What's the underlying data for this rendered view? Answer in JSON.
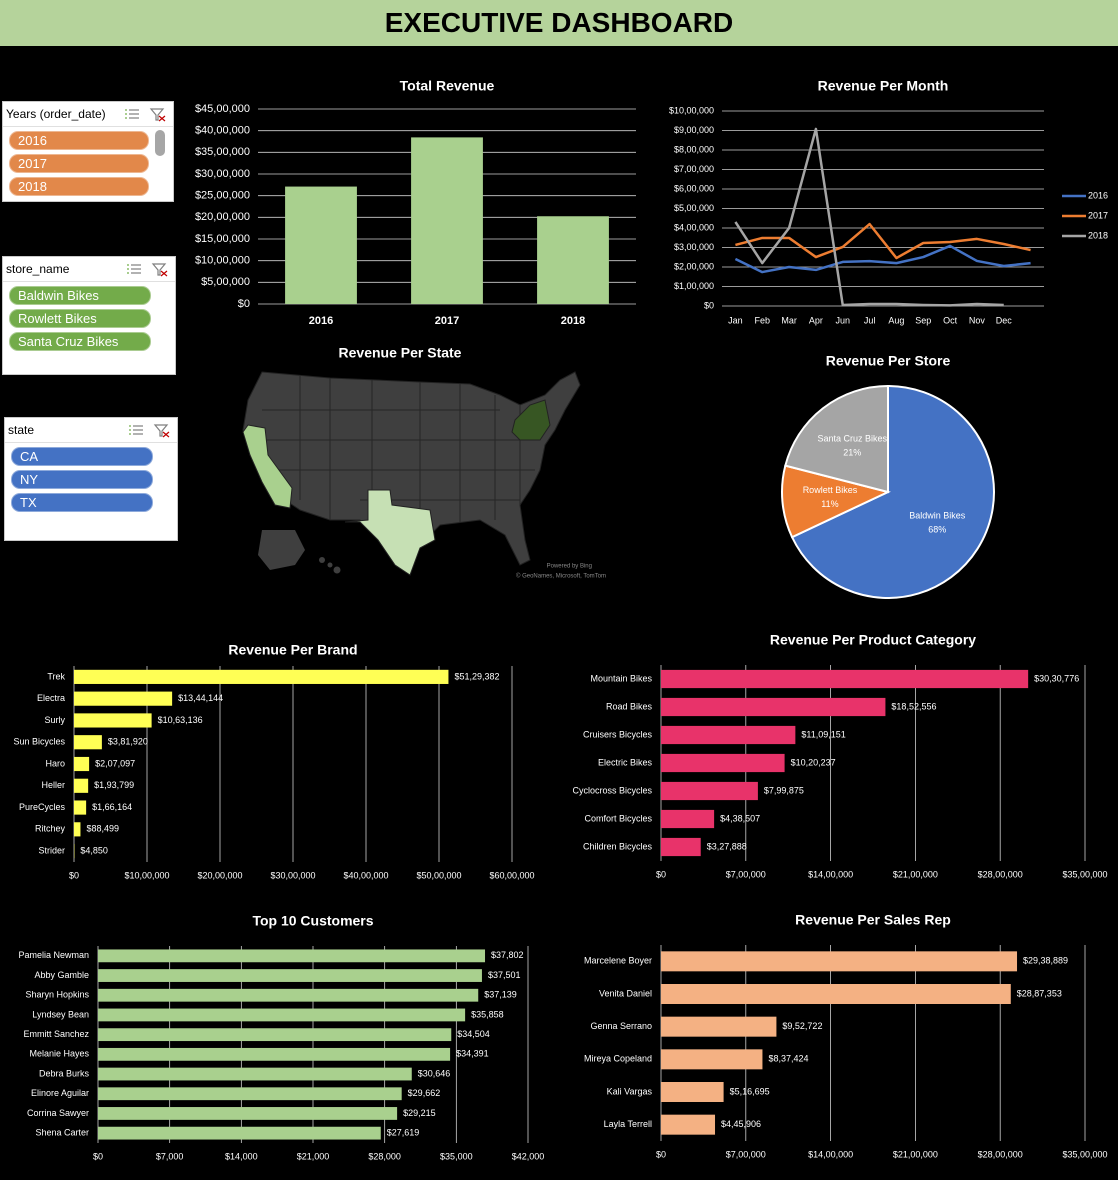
{
  "title": "EXECUTIVE DASHBOARD",
  "slicers": [
    {
      "title": "Years (order_date)",
      "items": [
        "2016",
        "2017",
        "2018"
      ]
    },
    {
      "title": "store_name",
      "items": [
        "Baldwin Bikes",
        "Rowlett Bikes",
        "Santa Cruz Bikes"
      ]
    },
    {
      "title": "state",
      "items": [
        "CA",
        "NY",
        "TX"
      ]
    }
  ],
  "map": {
    "title": "Revenue Per State",
    "credits": [
      "Powered by Bing",
      "© GeoNames, Microsoft, TomTom"
    ]
  },
  "chart_data": [
    {
      "type": "bar",
      "title": "Total Revenue",
      "categories": [
        "2016",
        "2017",
        "2018"
      ],
      "values": [
        2710000,
        3845000,
        2025000
      ],
      "color": "#a9d08e",
      "ylim": [
        0,
        4500000
      ],
      "yticks": [
        {
          "value": 0,
          "label": "$0"
        },
        {
          "value": 500000,
          "label": "$5,00,000"
        },
        {
          "value": 1000000,
          "label": "$10,00,000"
        },
        {
          "value": 1500000,
          "label": "$15,00,000"
        },
        {
          "value": 2000000,
          "label": "$20,00,000"
        },
        {
          "value": 2500000,
          "label": "$25,00,000"
        },
        {
          "value": 3000000,
          "label": "$30,00,000"
        },
        {
          "value": 3500000,
          "label": "$35,00,000"
        },
        {
          "value": 4000000,
          "label": "$40,00,000"
        },
        {
          "value": 4500000,
          "label": "$45,00,000"
        }
      ],
      "grid": true
    },
    {
      "type": "line",
      "title": "Revenue Per Month",
      "categories": [
        "Jan",
        "Feb",
        "Mar",
        "Apr",
        "Jun",
        "Jul",
        "Aug",
        "Sep",
        "Oct",
        "Nov",
        "Dec",
        null
      ],
      "series": [
        {
          "name": "2016",
          "color": "#4472c4",
          "values": [
            241000,
            174000,
            200000,
            185000,
            226000,
            230000,
            220000,
            251000,
            308000,
            231000,
            205000,
            220000
          ]
        },
        {
          "name": "2017",
          "color": "#ed7d31",
          "values": [
            313000,
            349000,
            349000,
            251000,
            303000,
            420000,
            246000,
            323000,
            328000,
            344000,
            318000,
            287000
          ]
        },
        {
          "name": "2018",
          "color": "#a5a5a5",
          "values": [
            431000,
            220000,
            400000,
            908000,
            5000,
            10000,
            10000,
            5000,
            3000,
            10000,
            5000,
            null
          ]
        }
      ],
      "ylim": [
        0,
        1000000
      ],
      "yticks": [
        {
          "value": 0,
          "label": "$0"
        },
        {
          "value": 100000,
          "label": "$1,00,000"
        },
        {
          "value": 200000,
          "label": "$2,00,000"
        },
        {
          "value": 300000,
          "label": "$3,00,000"
        },
        {
          "value": 400000,
          "label": "$4,00,000"
        },
        {
          "value": 500000,
          "label": "$5,00,000"
        },
        {
          "value": 600000,
          "label": "$6,00,000"
        },
        {
          "value": 700000,
          "label": "$7,00,000"
        },
        {
          "value": 800000,
          "label": "$8,00,000"
        },
        {
          "value": 900000,
          "label": "$9,00,000"
        },
        {
          "value": 1000000,
          "label": "$10,00,000"
        }
      ],
      "grid": true,
      "legend": "right"
    },
    {
      "type": "pie",
      "title": "Revenue Per Store",
      "categories": [
        "Baldwin Bikes",
        "Rowlett Bikes",
        "Santa Cruz Bikes"
      ],
      "values": [
        68,
        11,
        21
      ],
      "value_labels": [
        "68%",
        "11%",
        "21%"
      ],
      "colors": [
        "#4472c4",
        "#ed7d31",
        "#a5a5a5"
      ]
    },
    {
      "type": "barh",
      "title": "Revenue Per Brand",
      "categories": [
        "Trek",
        "Electra",
        "Surly",
        "Sun Bicycles",
        "Haro",
        "Heller",
        "PureCycles",
        "Ritchey",
        "Strider"
      ],
      "values": [
        5129382,
        1344144,
        1063136,
        381920,
        207097,
        193799,
        166164,
        88499,
        4850
      ],
      "value_labels": [
        "$51,29,382",
        "$13,44,144",
        "$10,63,136",
        "$3,81,920",
        "$2,07,097",
        "$1,93,799",
        "$1,66,164",
        "$88,499",
        "$4,850"
      ],
      "color": "#ffff55",
      "xlim": [
        0,
        6000000
      ],
      "xticks": [
        {
          "value": 0,
          "label": "$0"
        },
        {
          "value": 1000000,
          "label": "$10,00,000"
        },
        {
          "value": 2000000,
          "label": "$20,00,000"
        },
        {
          "value": 3000000,
          "label": "$30,00,000"
        },
        {
          "value": 4000000,
          "label": "$40,00,000"
        },
        {
          "value": 5000000,
          "label": "$50,00,000"
        },
        {
          "value": 6000000,
          "label": "$60,00,000"
        }
      ],
      "grid": true
    },
    {
      "type": "barh",
      "title": "Revenue Per Product Category",
      "categories": [
        "Mountain Bikes",
        "Road Bikes",
        "Cruisers Bicycles",
        "Electric Bikes",
        "Cyclocross Bicycles",
        "Comfort Bicycles",
        "Children Bicycles"
      ],
      "values": [
        3030776,
        1852556,
        1109151,
        1020237,
        799875,
        438507,
        327888
      ],
      "value_labels": [
        "$30,30,776",
        "$18,52,556",
        "$11,09,151",
        "$10,20,237",
        "$7,99,875",
        "$4,38,507",
        "$3,27,888"
      ],
      "color": "#e8336a",
      "xlim": [
        0,
        3500000
      ],
      "xticks": [
        {
          "value": 0,
          "label": "$0"
        },
        {
          "value": 700000,
          "label": "$7,00,000"
        },
        {
          "value": 1400000,
          "label": "$14,00,000"
        },
        {
          "value": 2100000,
          "label": "$21,00,000"
        },
        {
          "value": 2800000,
          "label": "$28,00,000"
        },
        {
          "value": 3500000,
          "label": "$35,00,000"
        }
      ],
      "grid": true
    },
    {
      "type": "barh",
      "title": "Top 10 Customers",
      "categories": [
        "Pamelia Newman",
        "Abby Gamble",
        "Sharyn Hopkins",
        "Lyndsey Bean",
        "Emmitt Sanchez",
        "Melanie Hayes",
        "Debra Burks",
        "Elinore Aguilar",
        "Corrina Sawyer",
        "Shena Carter"
      ],
      "values": [
        37802,
        37501,
        37139,
        35858,
        34504,
        34391,
        30646,
        29662,
        29215,
        27619
      ],
      "value_labels": [
        "$37,802",
        "$37,501",
        "$37,139",
        "$35,858",
        "$34,504",
        "$34,391",
        "$30,646",
        "$29,662",
        "$29,215",
        "$27,619"
      ],
      "color": "#a9d08e",
      "xlim": [
        0,
        42000
      ],
      "xticks": [
        {
          "value": 0,
          "label": "$0"
        },
        {
          "value": 7000,
          "label": "$7,000"
        },
        {
          "value": 14000,
          "label": "$14,000"
        },
        {
          "value": 21000,
          "label": "$21,000"
        },
        {
          "value": 28000,
          "label": "$28,000"
        },
        {
          "value": 35000,
          "label": "$35,000"
        },
        {
          "value": 42000,
          "label": "$42,000"
        }
      ],
      "grid": true
    },
    {
      "type": "barh",
      "title": "Revenue Per Sales Rep",
      "categories": [
        "Marcelene Boyer",
        "Venita Daniel",
        "Genna Serrano",
        "Mireya Copeland",
        "Kali Vargas",
        "Layla Terrell"
      ],
      "values": [
        2938889,
        2887353,
        952722,
        837424,
        516695,
        445906
      ],
      "value_labels": [
        "$29,38,889",
        "$28,87,353",
        "$9,52,722",
        "$8,37,424",
        "$5,16,695",
        "$4,45,906"
      ],
      "color": "#f4b183",
      "xlim": [
        0,
        3500000
      ],
      "xticks": [
        {
          "value": 0,
          "label": "$0"
        },
        {
          "value": 700000,
          "label": "$7,00,000"
        },
        {
          "value": 1400000,
          "label": "$14,00,000"
        },
        {
          "value": 2100000,
          "label": "$21,00,000"
        },
        {
          "value": 2800000,
          "label": "$28,00,000"
        },
        {
          "value": 3500000,
          "label": "$35,00,000"
        }
      ],
      "grid": true
    }
  ]
}
